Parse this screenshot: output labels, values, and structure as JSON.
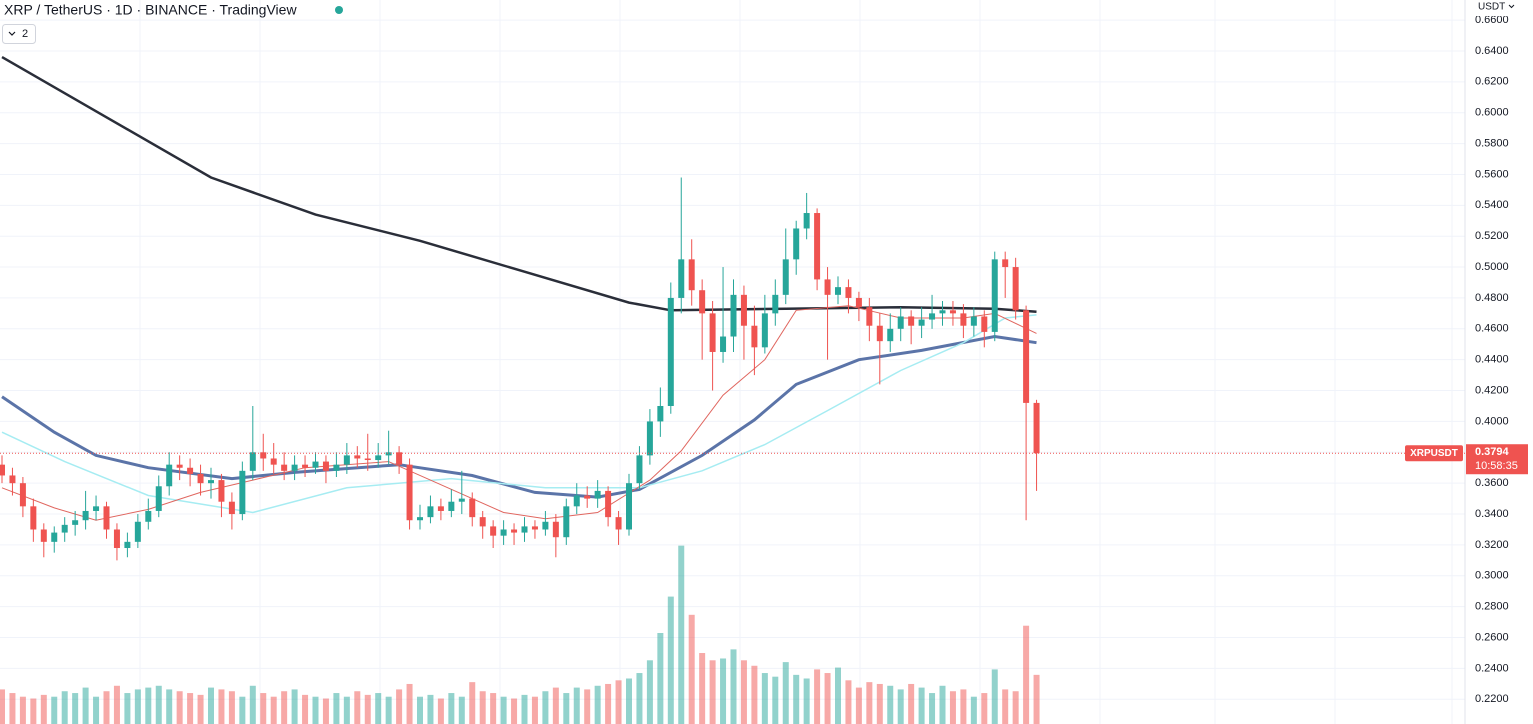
{
  "chart_data": {
    "type": "candlestick",
    "title": "XRP / TetherUS · 1D · BINANCE · TradingView",
    "indicator_count": "2",
    "currency": "USDT",
    "up_color": "#26a69a",
    "down_color": "#ef5350",
    "ylim": [
      0.204,
      0.673
    ],
    "yticks": [
      {
        "value": 0.22,
        "label": "0.2200"
      },
      {
        "value": 0.24,
        "label": "0.2400"
      },
      {
        "value": 0.26,
        "label": "0.2600"
      },
      {
        "value": 0.28,
        "label": "0.2800"
      },
      {
        "value": 0.3,
        "label": "0.3000"
      },
      {
        "value": 0.32,
        "label": "0.3200"
      },
      {
        "value": 0.34,
        "label": "0.3400"
      },
      {
        "value": 0.36,
        "label": "0.3600"
      },
      {
        "value": 0.38,
        "label": "0.3800"
      },
      {
        "value": 0.4,
        "label": "0.4000"
      },
      {
        "value": 0.42,
        "label": "0.4200"
      },
      {
        "value": 0.44,
        "label": "0.4400"
      },
      {
        "value": 0.46,
        "label": "0.4600"
      },
      {
        "value": 0.48,
        "label": "0.4800"
      },
      {
        "value": 0.5,
        "label": "0.5000"
      },
      {
        "value": 0.52,
        "label": "0.5200"
      },
      {
        "value": 0.54,
        "label": "0.5400"
      },
      {
        "value": 0.56,
        "label": "0.5600"
      },
      {
        "value": 0.58,
        "label": "0.5800"
      },
      {
        "value": 0.6,
        "label": "0.6000"
      },
      {
        "value": 0.62,
        "label": "0.6200"
      },
      {
        "value": 0.64,
        "label": "0.6400"
      },
      {
        "value": 0.66,
        "label": "0.6600"
      }
    ],
    "grid": true,
    "open": [
      0.372,
      0.365,
      0.36,
      0.345,
      0.33,
      0.322,
      0.328,
      0.333,
      0.336,
      0.342,
      0.345,
      0.33,
      0.318,
      0.322,
      0.335,
      0.342,
      0.358,
      0.372,
      0.37,
      0.366,
      0.36,
      0.362,
      0.348,
      0.34,
      0.368,
      0.38,
      0.376,
      0.372,
      0.368,
      0.372,
      0.37,
      0.374,
      0.368,
      0.372,
      0.378,
      0.376,
      0.375,
      0.378,
      0.38,
      0.372,
      0.336,
      0.338,
      0.345,
      0.342,
      0.348,
      0.35,
      0.338,
      0.332,
      0.326,
      0.33,
      0.328,
      0.332,
      0.33,
      0.335,
      0.325,
      0.345,
      0.352,
      0.35,
      0.355,
      0.338,
      0.33,
      0.36,
      0.378,
      0.4,
      0.41,
      0.48,
      0.505,
      0.485,
      0.47,
      0.445,
      0.455,
      0.482,
      0.462,
      0.448,
      0.47,
      0.482,
      0.505,
      0.525,
      0.535,
      0.492,
      0.482,
      0.487,
      0.48,
      0.474,
      0.462,
      0.452,
      0.46,
      0.468,
      0.462,
      0.466,
      0.47,
      0.472,
      0.47,
      0.462,
      0.468,
      0.458,
      0.505,
      0.5,
      0.472,
      0.412
    ],
    "high": [
      0.378,
      0.37,
      0.364,
      0.35,
      0.334,
      0.332,
      0.338,
      0.342,
      0.355,
      0.352,
      0.348,
      0.334,
      0.328,
      0.34,
      0.35,
      0.365,
      0.38,
      0.378,
      0.376,
      0.372,
      0.37,
      0.366,
      0.354,
      0.374,
      0.41,
      0.392,
      0.386,
      0.38,
      0.378,
      0.378,
      0.38,
      0.378,
      0.38,
      0.386,
      0.384,
      0.392,
      0.386,
      0.394,
      0.384,
      0.376,
      0.346,
      0.352,
      0.35,
      0.356,
      0.368,
      0.354,
      0.342,
      0.336,
      0.336,
      0.334,
      0.338,
      0.336,
      0.342,
      0.34,
      0.35,
      0.36,
      0.358,
      0.362,
      0.358,
      0.342,
      0.366,
      0.384,
      0.408,
      0.422,
      0.49,
      0.558,
      0.518,
      0.492,
      0.478,
      0.5,
      0.492,
      0.488,
      0.475,
      0.482,
      0.492,
      0.525,
      0.53,
      0.548,
      0.538,
      0.5,
      0.494,
      0.492,
      0.484,
      0.48,
      0.47,
      0.47,
      0.474,
      0.472,
      0.474,
      0.482,
      0.478,
      0.478,
      0.476,
      0.474,
      0.472,
      0.51,
      0.51,
      0.506,
      0.475,
      0.414
    ],
    "low": [
      0.36,
      0.352,
      0.338,
      0.322,
      0.312,
      0.315,
      0.322,
      0.326,
      0.33,
      0.336,
      0.324,
      0.31,
      0.312,
      0.318,
      0.33,
      0.338,
      0.352,
      0.362,
      0.358,
      0.352,
      0.35,
      0.338,
      0.33,
      0.336,
      0.362,
      0.368,
      0.366,
      0.362,
      0.362,
      0.364,
      0.366,
      0.36,
      0.364,
      0.366,
      0.37,
      0.368,
      0.37,
      0.372,
      0.366,
      0.33,
      0.33,
      0.334,
      0.336,
      0.338,
      0.34,
      0.332,
      0.324,
      0.318,
      0.32,
      0.32,
      0.322,
      0.324,
      0.326,
      0.312,
      0.32,
      0.34,
      0.344,
      0.344,
      0.332,
      0.32,
      0.326,
      0.356,
      0.372,
      0.39,
      0.405,
      0.47,
      0.475,
      0.44,
      0.42,
      0.438,
      0.445,
      0.44,
      0.43,
      0.444,
      0.462,
      0.476,
      0.495,
      0.518,
      0.485,
      0.44,
      0.476,
      0.47,
      0.465,
      0.452,
      0.424,
      0.445,
      0.452,
      0.45,
      0.454,
      0.46,
      0.462,
      0.462,
      0.454,
      0.455,
      0.448,
      0.452,
      0.48,
      0.466,
      0.336,
      0.355
    ],
    "close": [
      0.365,
      0.36,
      0.345,
      0.33,
      0.322,
      0.328,
      0.333,
      0.336,
      0.342,
      0.345,
      0.33,
      0.318,
      0.322,
      0.335,
      0.342,
      0.358,
      0.372,
      0.37,
      0.366,
      0.36,
      0.362,
      0.348,
      0.34,
      0.368,
      0.38,
      0.376,
      0.372,
      0.368,
      0.372,
      0.37,
      0.374,
      0.368,
      0.372,
      0.378,
      0.376,
      0.375,
      0.378,
      0.38,
      0.372,
      0.336,
      0.338,
      0.345,
      0.342,
      0.348,
      0.35,
      0.338,
      0.332,
      0.326,
      0.33,
      0.328,
      0.332,
      0.33,
      0.335,
      0.325,
      0.345,
      0.352,
      0.35,
      0.355,
      0.338,
      0.33,
      0.36,
      0.378,
      0.4,
      0.41,
      0.48,
      0.505,
      0.485,
      0.47,
      0.445,
      0.455,
      0.482,
      0.462,
      0.448,
      0.47,
      0.482,
      0.505,
      0.525,
      0.535,
      0.492,
      0.482,
      0.487,
      0.48,
      0.474,
      0.462,
      0.452,
      0.46,
      0.468,
      0.462,
      0.466,
      0.47,
      0.472,
      0.47,
      0.462,
      0.468,
      0.458,
      0.505,
      0.5,
      0.472,
      0.412,
      0.3794
    ],
    "volume": [
      38,
      34,
      30,
      28,
      32,
      30,
      36,
      34,
      40,
      30,
      36,
      42,
      34,
      38,
      40,
      42,
      38,
      36,
      34,
      32,
      40,
      38,
      36,
      30,
      42,
      34,
      30,
      36,
      38,
      32,
      30,
      28,
      34,
      30,
      36,
      32,
      34,
      30,
      38,
      44,
      30,
      32,
      28,
      34,
      30,
      46,
      36,
      34,
      30,
      28,
      32,
      30,
      36,
      40,
      34,
      40,
      38,
      42,
      44,
      48,
      50,
      56,
      70,
      100,
      140,
      196,
      120,
      78,
      70,
      72,
      82,
      70,
      64,
      56,
      52,
      68,
      54,
      50,
      60,
      56,
      62,
      48,
      40,
      46,
      44,
      42,
      38,
      44,
      40,
      34,
      42,
      36,
      38,
      30,
      34,
      60,
      38,
      36,
      108,
      54
    ],
    "volume_lim": [
      0,
      200
    ],
    "moving_averages": [
      {
        "color": "#2a2e39",
        "width": 2.5,
        "x": [
          0,
          10,
          20,
          30,
          40,
          50,
          60,
          64,
          75,
          86,
          95,
          99
        ],
        "values": [
          0.636,
          0.597,
          0.558,
          0.534,
          0.517,
          0.497,
          0.477,
          0.472,
          0.473,
          0.474,
          0.473,
          0.471
        ]
      },
      {
        "color": "#5b74a8",
        "width": 3,
        "x": [
          0,
          5,
          9,
          14,
          22,
          28,
          38,
          45,
          51,
          57,
          61,
          67,
          72,
          76,
          82,
          88,
          95,
          99
        ],
        "values": [
          0.416,
          0.393,
          0.378,
          0.37,
          0.363,
          0.367,
          0.372,
          0.365,
          0.354,
          0.351,
          0.356,
          0.378,
          0.401,
          0.424,
          0.44,
          0.446,
          0.455,
          0.451
        ]
      },
      {
        "color": "#a6ecf2",
        "width": 1.5,
        "x": [
          0,
          6,
          14,
          24,
          33,
          43,
          52,
          61,
          67,
          73,
          79,
          86,
          92,
          96,
          99
        ],
        "values": [
          0.393,
          0.374,
          0.352,
          0.341,
          0.357,
          0.363,
          0.357,
          0.357,
          0.368,
          0.385,
          0.407,
          0.433,
          0.451,
          0.467,
          0.469
        ]
      },
      {
        "color": "#e0665f",
        "width": 1,
        "x": [
          0,
          5,
          9,
          14,
          19,
          24,
          29,
          37,
          41,
          48,
          52,
          57,
          62,
          65,
          69,
          73,
          76,
          81,
          86,
          92,
          95,
          99
        ],
        "values": [
          0.357,
          0.344,
          0.336,
          0.343,
          0.354,
          0.362,
          0.37,
          0.374,
          0.362,
          0.341,
          0.337,
          0.341,
          0.362,
          0.381,
          0.417,
          0.44,
          0.472,
          0.475,
          0.467,
          0.467,
          0.47,
          0.457
        ]
      }
    ],
    "last_price": {
      "name": "XRPUSDT",
      "value": 0.3794,
      "countdown": "10:58:35"
    }
  }
}
